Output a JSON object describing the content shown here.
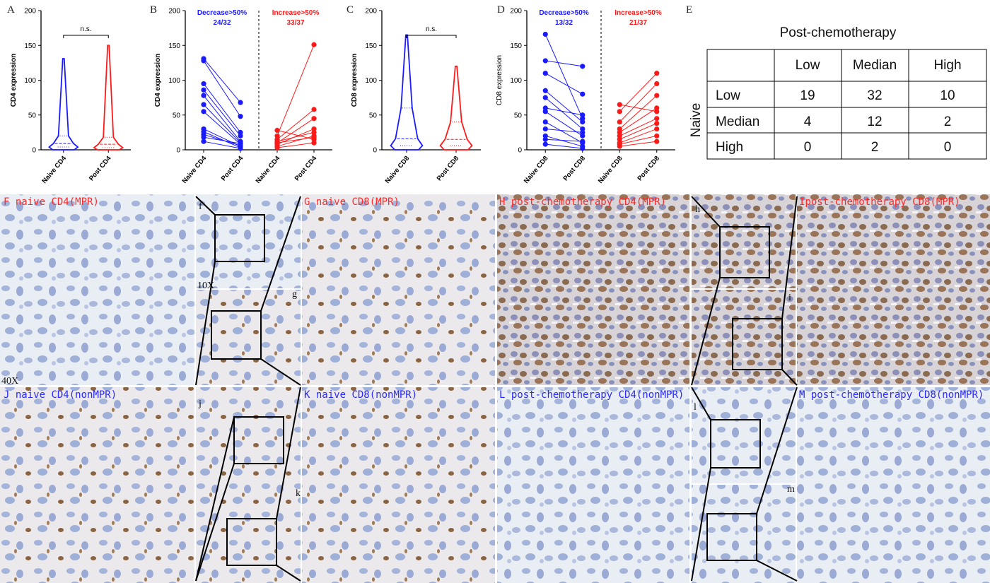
{
  "chart_data": [
    {
      "type": "violin",
      "label": "A",
      "ylabel": "CD4 expression",
      "annotation": "n.s.",
      "categories": [
        "Naive CD4",
        "Post CD4"
      ],
      "series": [
        {
          "color": "#1a1aff",
          "min": 0,
          "q1": 4,
          "median": 9,
          "q3": 20,
          "max": 131
        },
        {
          "color": "#ff1a1a",
          "min": 0,
          "q1": 3,
          "median": 8,
          "q3": 18,
          "max": 150
        }
      ],
      "ylim": [
        0,
        200
      ],
      "yticks": [
        0,
        50,
        100,
        150,
        200
      ]
    },
    {
      "type": "paired",
      "label": "B",
      "ylabel": "CD4 expression",
      "categories": [
        "Naive CD4",
        "Post CD4",
        "Naive CD4",
        "Post CD4"
      ],
      "series": [
        {
          "name": "Decrease>50%",
          "ratio": "24/32",
          "color": "#1a1aff",
          "pairs": [
            [
              131,
              68
            ],
            [
              128,
              48
            ],
            [
              95,
              25
            ],
            [
              86,
              20
            ],
            [
              78,
              12
            ],
            [
              65,
              10
            ],
            [
              55,
              8
            ],
            [
              30,
              5
            ],
            [
              26,
              3
            ],
            [
              22,
              6
            ],
            [
              18,
              9
            ],
            [
              12,
              2
            ]
          ]
        },
        {
          "name": "Increase>50%",
          "ratio": "33/37",
          "color": "#ff1a1a",
          "pairs": [
            [
              20,
              151
            ],
            [
              15,
              58
            ],
            [
              10,
              45
            ],
            [
              8,
              30
            ],
            [
              12,
              25
            ],
            [
              5,
              20
            ],
            [
              28,
              15
            ],
            [
              10,
              18
            ],
            [
              3,
              10
            ]
          ]
        }
      ],
      "ylim": [
        0,
        200
      ],
      "yticks": [
        0,
        50,
        100,
        150,
        200
      ]
    },
    {
      "type": "violin",
      "label": "C",
      "ylabel": "CD8 expression",
      "annotation": "n.s.",
      "categories": [
        "Naive CD8",
        "Post CD8"
      ],
      "series": [
        {
          "color": "#1a1aff",
          "min": 0,
          "q1": 6,
          "median": 16,
          "q3": 60,
          "max": 165
        },
        {
          "color": "#ff1a1a",
          "min": 0,
          "q1": 6,
          "median": 15,
          "q3": 40,
          "max": 120
        }
      ],
      "ylim": [
        0,
        200
      ],
      "yticks": [
        0,
        50,
        100,
        150,
        200
      ]
    },
    {
      "type": "paired",
      "label": "D",
      "ylabel": "CD8 expression",
      "categories": [
        "Naive CD8",
        "Post CD8",
        "Naive CD8",
        "Post CD8"
      ],
      "series": [
        {
          "name": "Decrease>50%",
          "ratio": "13/32",
          "color": "#1a1aff",
          "pairs": [
            [
              166,
              45
            ],
            [
              128,
              120
            ],
            [
              110,
              80
            ],
            [
              85,
              40
            ],
            [
              75,
              30
            ],
            [
              60,
              50
            ],
            [
              55,
              20
            ],
            [
              40,
              10
            ],
            [
              30,
              25
            ],
            [
              20,
              5
            ],
            [
              15,
              12
            ],
            [
              8,
              2
            ]
          ]
        },
        {
          "name": "Increase>50%",
          "ratio": "21/37",
          "color": "#ff1a1a",
          "pairs": [
            [
              65,
              55
            ],
            [
              55,
              110
            ],
            [
              40,
              95
            ],
            [
              30,
              78
            ],
            [
              25,
              60
            ],
            [
              20,
              45
            ],
            [
              15,
              38
            ],
            [
              10,
              30
            ],
            [
              8,
              20
            ],
            [
              5,
              12
            ]
          ]
        }
      ],
      "ylim": [
        0,
        200
      ],
      "yticks": [
        0,
        50,
        100,
        150,
        200
      ]
    }
  ],
  "table": {
    "label": "E",
    "title": "Post-chemotherapy",
    "row_header": "Naive",
    "columns": [
      "Low",
      "Median",
      "High"
    ],
    "rows": [
      [
        "Low",
        "19",
        "32",
        "10"
      ],
      [
        "Median",
        "4",
        "12",
        "2"
      ],
      [
        "High",
        "0",
        "2",
        "0"
      ]
    ]
  },
  "images": [
    {
      "panel": "F",
      "caption": "naive CD4(MPR)"
    },
    {
      "panel": "G",
      "caption": "naive CD8(MPR)"
    },
    {
      "panel": "H",
      "caption": "post-chemotherapy CD4(MPR)"
    },
    {
      "panel": "I",
      "caption": "post-chemotherapy CD8(MPR)"
    },
    {
      "panel": "J",
      "caption": "naive CD4(nonMPR)"
    },
    {
      "panel": "K",
      "caption": "naive CD8(nonMPR)"
    },
    {
      "panel": "L",
      "caption": "post-chemotherapy CD4(nonMPR)"
    },
    {
      "panel": "M",
      "caption": "post-chemotherapy CD8(nonMPR)"
    }
  ],
  "insets": [
    "f",
    "g",
    "h",
    "i",
    "j",
    "k",
    "l",
    "m",
    "10X",
    "40X"
  ]
}
